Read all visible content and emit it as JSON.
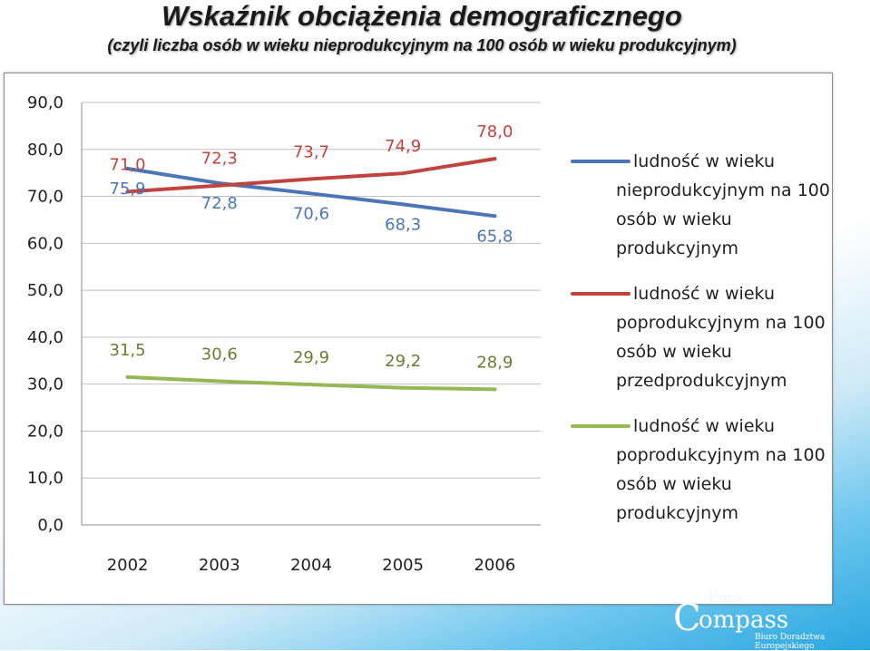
{
  "header": {
    "title": "Wskaźnik obciążenia demograficznego",
    "subtitle": "(czyli liczba osób w wieku nieprodukcyjnym na 100 osób w wieku produkcyjnym)"
  },
  "chart_data": {
    "type": "line",
    "title": "",
    "xlabel": "",
    "ylabel": "",
    "categories": [
      "2002",
      "2003",
      "2004",
      "2005",
      "2006"
    ],
    "ylim": [
      0,
      90
    ],
    "yticks": [
      "0,0",
      "10,0",
      "20,0",
      "30,0",
      "40,0",
      "50,0",
      "60,0",
      "70,0",
      "80,0",
      "90,0"
    ],
    "grid": true,
    "legend_position": "right",
    "series": [
      {
        "name_lines": [
          "ludność w wieku",
          "nieprodukcyjnym na 100",
          "osób w wieku",
          "produkcyjnym"
        ],
        "color": "#4a76b8",
        "values": [
          75.9,
          72.8,
          70.6,
          68.3,
          65.8
        ],
        "labels": [
          "75,9",
          "72,8",
          "70,6",
          "68,3",
          "65,8"
        ],
        "label_position": "below"
      },
      {
        "name_lines": [
          "ludność w wieku",
          "poprodukcyjnym na 100",
          "osób w wieku",
          "przedprodukcyjnym"
        ],
        "color": "#c0433f",
        "values": [
          71.0,
          72.3,
          73.7,
          74.9,
          78.0
        ],
        "labels": [
          "71,0",
          "72,3",
          "73,7",
          "74,9",
          "78,0"
        ],
        "label_position": "above"
      },
      {
        "name_lines": [
          "ludność w wieku",
          "poprodukcyjnym na 100",
          "osób w wieku",
          "produkcyjnym"
        ],
        "color": "#93b855",
        "label_color": "#6f7a32",
        "values": [
          31.5,
          30.6,
          29.9,
          29.2,
          28.9
        ],
        "labels": [
          "31,5",
          "30,6",
          "29,9",
          "29,2",
          "28,9"
        ],
        "label_position": "above"
      }
    ]
  },
  "logo": {
    "top_text": "Euro",
    "initial": "C",
    "name": "ompass",
    "tagline": "Biuro Doradztwa Europejskiego"
  }
}
